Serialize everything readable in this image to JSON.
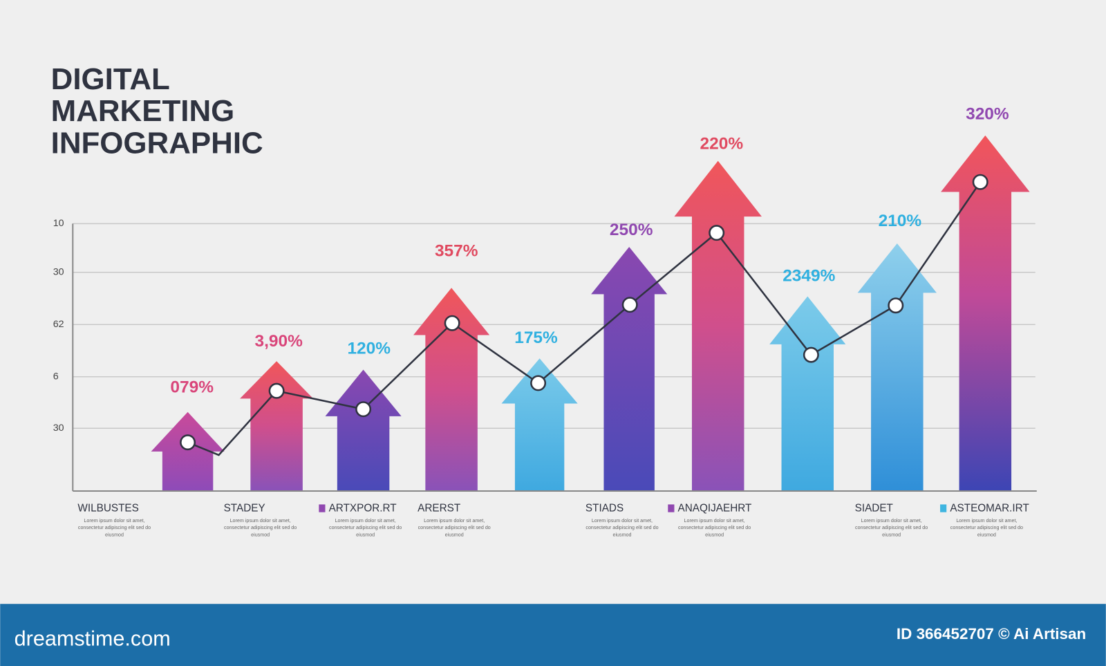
{
  "header": {
    "title": [
      "DIGITAL",
      "MARKETING",
      "INFOGRAPHIC"
    ]
  },
  "axis_labels": [
    "10",
    "30",
    "62",
    "6",
    "30"
  ],
  "arrows": [
    {
      "label": "079%"
    },
    {
      "label": "3,90%"
    },
    {
      "label": "120%"
    },
    {
      "label": "357%"
    },
    {
      "label": "175%"
    },
    {
      "label": "250%"
    },
    {
      "label": "220%"
    },
    {
      "label": "2349%"
    },
    {
      "label": "210%"
    },
    {
      "label": "320%"
    }
  ],
  "categories": [
    {
      "name": "WILBUSTES",
      "text": "Lorem ipsum dolor sit amet, consectetur adipiscing elit sed do eiusmod"
    },
    {
      "name": "STADEY",
      "text": "Lorem ipsum dolor sit amet, consectetur adipiscing elit sed do eiusmod"
    },
    {
      "name": "ARTXPOR.RT",
      "text": "Lorem ipsum dolor sit amet, consectetur adipiscing elit sed do eiusmod"
    },
    {
      "name": "ARERST",
      "text": "Lorem ipsum dolor sit amet, consectetur adipiscing elit sed do eiusmod"
    },
    {
      "name": "STIADS",
      "text": "Lorem ipsum dolor sit amet, consectetur adipiscing elit sed do eiusmod"
    },
    {
      "name": "ANAQIJAEHRT",
      "text": "Lorem ipsum dolor sit amet, consectetur adipiscing elit sed do eiusmod"
    },
    {
      "name": "SIADET",
      "text": "Lorem ipsum dolor sit amet, consectetur adipiscing elit sed do eiusmod"
    },
    {
      "name": "ASTEOMAR.IRT",
      "text": "Lorem ipsum dolor sit amet, consectetur adipiscing elit sed do eiusmod"
    }
  ],
  "footer": {
    "site": "dreamstime.com",
    "credit": "ID 366452707 © Ai Artisan"
  }
}
